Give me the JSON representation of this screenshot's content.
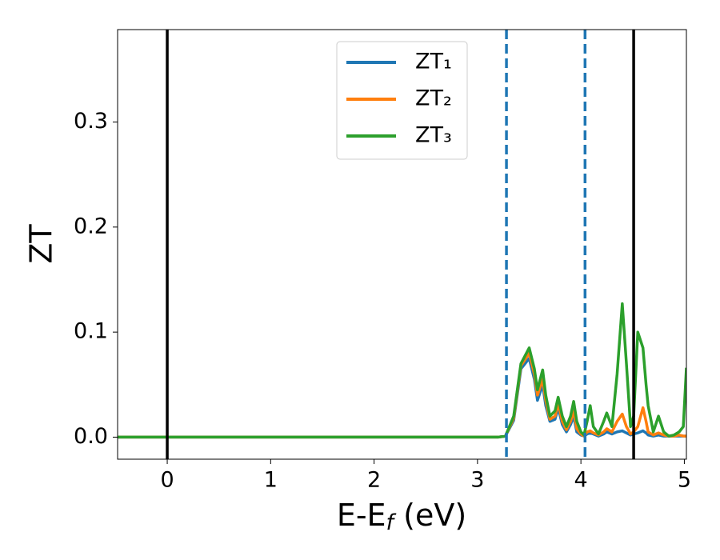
{
  "chart_data": {
    "type": "line",
    "ylabel": "ZT",
    "xlabel": {
      "text": "E-E",
      "sub": "f",
      "after": " (eV)"
    },
    "x": [
      -0.48,
      3.2,
      3.27,
      3.35,
      3.42,
      3.5,
      3.55,
      3.58,
      3.63,
      3.66,
      3.7,
      3.75,
      3.78,
      3.82,
      3.86,
      3.9,
      3.93,
      3.96,
      4.0,
      4.03,
      4.06,
      4.09,
      4.12,
      4.17,
      4.22,
      4.25,
      4.3,
      4.35,
      4.4,
      4.44,
      4.48,
      4.51,
      4.55,
      4.6,
      4.63,
      4.65,
      4.7,
      4.75,
      4.8,
      4.85,
      4.9,
      4.95,
      4.99,
      5.02
    ],
    "series": [
      {
        "name": "ZT₁",
        "color": "#1f77b4",
        "values": [
          0,
          0,
          0.001,
          0.016,
          0.065,
          0.075,
          0.055,
          0.035,
          0.05,
          0.03,
          0.015,
          0.017,
          0.028,
          0.012,
          0.005,
          0.012,
          0.02,
          0.005,
          0.002,
          0.001,
          0.003,
          0.004,
          0.003,
          0.001,
          0.003,
          0.005,
          0.003,
          0.005,
          0.006,
          0.004,
          0.002,
          0.003,
          0.004,
          0.006,
          0.004,
          0.002,
          0.001,
          0.002,
          0.001,
          0.001,
          0.001,
          0.001,
          0.001,
          0.001
        ]
      },
      {
        "name": "ZT₂",
        "color": "#ff7f0e",
        "values": [
          0,
          0,
          0.001,
          0.018,
          0.068,
          0.08,
          0.06,
          0.04,
          0.055,
          0.035,
          0.017,
          0.02,
          0.032,
          0.015,
          0.007,
          0.015,
          0.025,
          0.008,
          0.003,
          0.001,
          0.005,
          0.006,
          0.004,
          0.002,
          0.005,
          0.008,
          0.005,
          0.015,
          0.022,
          0.01,
          0.003,
          0.005,
          0.01,
          0.028,
          0.015,
          0.005,
          0.002,
          0.004,
          0.002,
          0.001,
          0.001,
          0.002,
          0.001,
          0.001
        ]
      },
      {
        "name": "ZT₃",
        "color": "#2ca02c",
        "values": [
          0,
          0,
          0.001,
          0.02,
          0.07,
          0.085,
          0.065,
          0.045,
          0.064,
          0.04,
          0.02,
          0.025,
          0.038,
          0.02,
          0.01,
          0.02,
          0.034,
          0.015,
          0.005,
          0.002,
          0.015,
          0.03,
          0.01,
          0.003,
          0.015,
          0.023,
          0.01,
          0.06,
          0.127,
          0.07,
          0.01,
          0.02,
          0.1,
          0.085,
          0.05,
          0.03,
          0.005,
          0.02,
          0.005,
          0.001,
          0.002,
          0.005,
          0.01,
          0.066
        ]
      }
    ],
    "vlines": [
      {
        "x": 0,
        "color": "#000000",
        "style": "solid"
      },
      {
        "x": 4.51,
        "color": "#000000",
        "style": "solid"
      },
      {
        "x": 3.28,
        "color": "#1f77b4",
        "style": "dashed"
      },
      {
        "x": 4.04,
        "color": "#1f77b4",
        "style": "dashed"
      }
    ],
    "xlim": [
      -0.48,
      5.02
    ],
    "ylim": [
      -0.021,
      0.388
    ],
    "xticks": [
      0,
      1,
      2,
      3,
      4,
      5
    ],
    "yticks": [
      {
        "value": 0,
        "label": "0.0"
      },
      0.1,
      0.2,
      0.3
    ],
    "legend": "upper center",
    "grid": false
  }
}
